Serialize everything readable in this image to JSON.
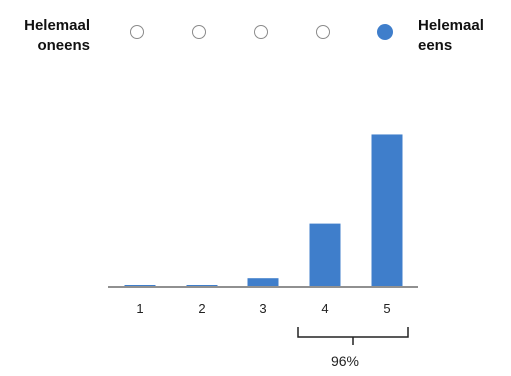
{
  "scale": {
    "left_label_line1": "Helemaal",
    "left_label_line2": "oneens",
    "right_label_line1": "Helemaal",
    "right_label_line2": "eens",
    "options": [
      "1",
      "2",
      "3",
      "4",
      "5"
    ],
    "selected": "5",
    "accent_color": "#3f7ecb"
  },
  "chart_data": {
    "type": "bar",
    "categories": [
      "1",
      "2",
      "3",
      "4",
      "5"
    ],
    "values": [
      0.3,
      0.3,
      3.5,
      28,
      68
    ],
    "ylim": [
      0,
      70
    ],
    "grid": false,
    "bar_color": "#3f7ecb",
    "annotation": {
      "label": "96%",
      "spans": [
        "4",
        "5"
      ]
    }
  }
}
